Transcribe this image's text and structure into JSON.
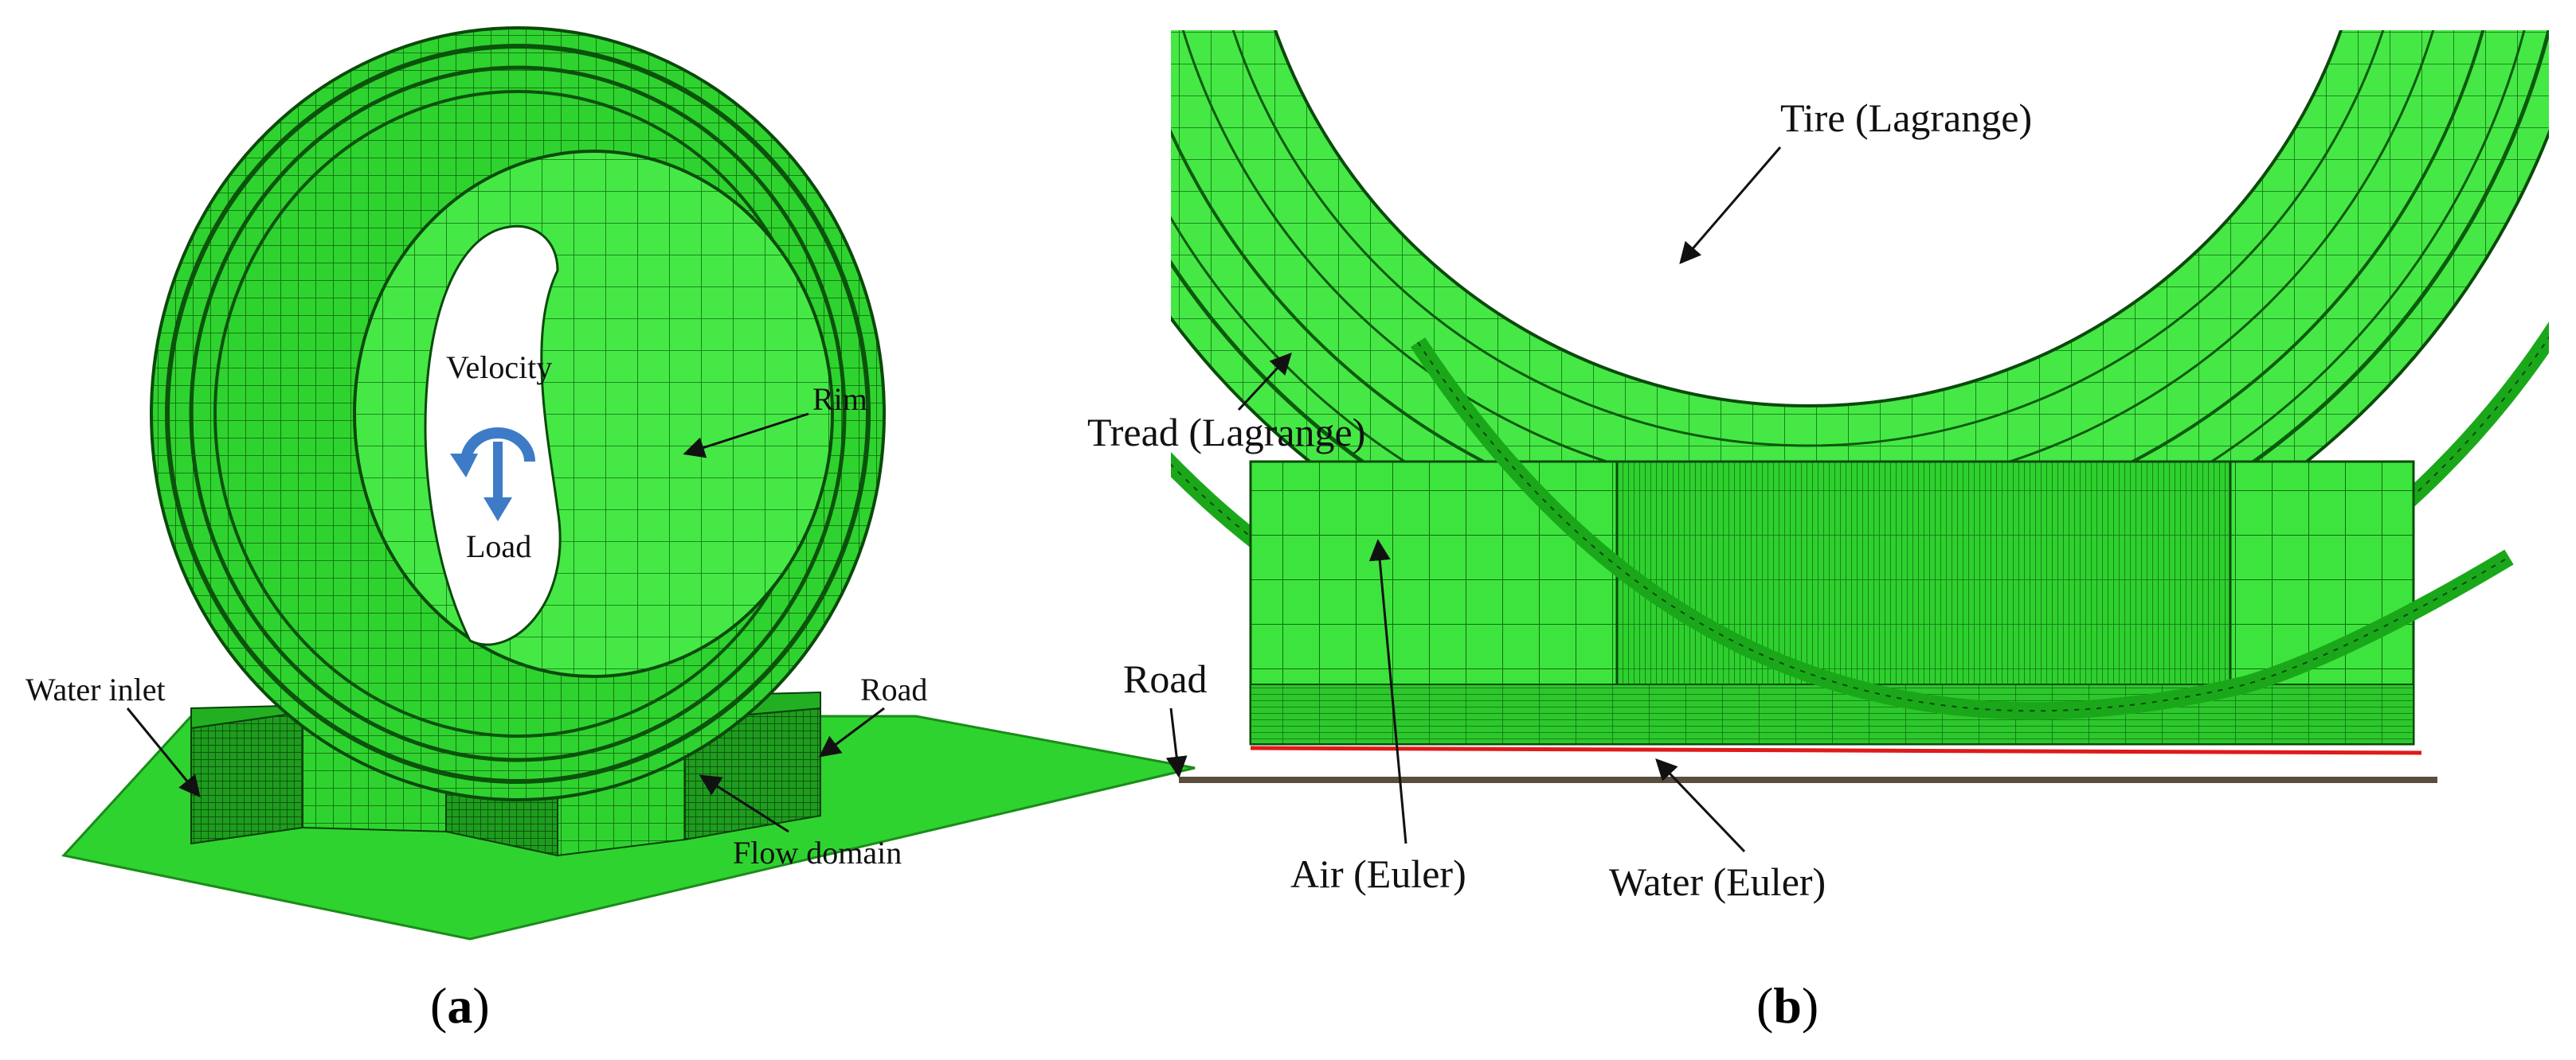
{
  "colors": {
    "mesh_green": "#2fd32f",
    "mesh_dark": "#0c6a0c",
    "mesh_light": "#58f058",
    "water_line": "#e01a1a",
    "road": "#5a4d3d",
    "arrow_blue": "#3d7bc7"
  },
  "panel_a": {
    "caption_letter": "a",
    "labels": {
      "velocity": "Velocity",
      "load": "Load",
      "rim": "Rim",
      "water_inlet": "Water inlet",
      "road": "Road",
      "flow_domain": "Flow domain"
    }
  },
  "panel_b": {
    "caption_letter": "b",
    "labels": {
      "tire": "Tire (Lagrange)",
      "tread": "Tread (Lagrange)",
      "road": "Road",
      "air": "Air (Euler)",
      "water": "Water (Euler)"
    }
  }
}
